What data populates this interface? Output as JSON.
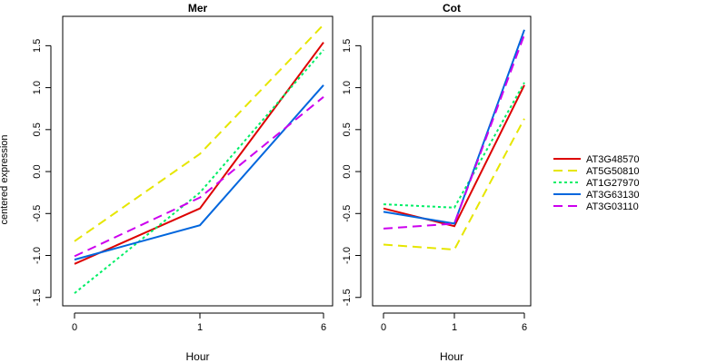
{
  "ylabel": "centered expression",
  "legend": {
    "placement": "right"
  },
  "chart_data": [
    {
      "type": "line",
      "title": "Mer",
      "xlabel": "Hour",
      "x": [
        "0",
        "1",
        "6"
      ],
      "ylim": [
        -1.6,
        1.85
      ],
      "yticks": [
        "-1.5",
        "-1.0",
        "-0.5",
        "0.0",
        "0.5",
        "1.0",
        "1.5"
      ],
      "series": [
        {
          "name": "AT3G48570",
          "color": "#dd0000",
          "dash": "solid",
          "values": [
            -1.1,
            -0.44,
            1.54
          ]
        },
        {
          "name": "AT5G50810",
          "color": "#e6e600",
          "dash": "long-dash",
          "values": [
            -0.83,
            0.21,
            1.75
          ]
        },
        {
          "name": "AT1G27970",
          "color": "#00ee66",
          "dash": "dotted",
          "values": [
            -1.45,
            -0.25,
            1.45
          ]
        },
        {
          "name": "AT3G63130",
          "color": "#0066dd",
          "dash": "solid",
          "values": [
            -1.05,
            -0.64,
            1.03
          ]
        },
        {
          "name": "AT3G03110",
          "color": "#cc00ee",
          "dash": "long-dash",
          "values": [
            -1.01,
            -0.31,
            0.89
          ]
        }
      ]
    },
    {
      "type": "line",
      "title": "Cot",
      "xlabel": "Hour",
      "x": [
        "0",
        "1",
        "6"
      ],
      "ylim": [
        -1.6,
        1.85
      ],
      "yticks": [
        "-1.5",
        "-1.0",
        "-0.5",
        "0.0",
        "0.5",
        "1.0",
        "1.5"
      ],
      "series": [
        {
          "name": "AT3G48570",
          "color": "#dd0000",
          "dash": "solid",
          "values": [
            -0.44,
            -0.65,
            1.03
          ]
        },
        {
          "name": "AT5G50810",
          "color": "#e6e600",
          "dash": "long-dash",
          "values": [
            -0.87,
            -0.93,
            0.63
          ]
        },
        {
          "name": "AT1G27970",
          "color": "#00ee66",
          "dash": "dotted",
          "values": [
            -0.39,
            -0.43,
            1.06
          ]
        },
        {
          "name": "AT3G63130",
          "color": "#0066dd",
          "dash": "solid",
          "values": [
            -0.48,
            -0.62,
            1.69
          ]
        },
        {
          "name": "AT3G03110",
          "color": "#cc00ee",
          "dash": "long-dash",
          "values": [
            -0.68,
            -0.62,
            1.63
          ]
        }
      ]
    }
  ]
}
